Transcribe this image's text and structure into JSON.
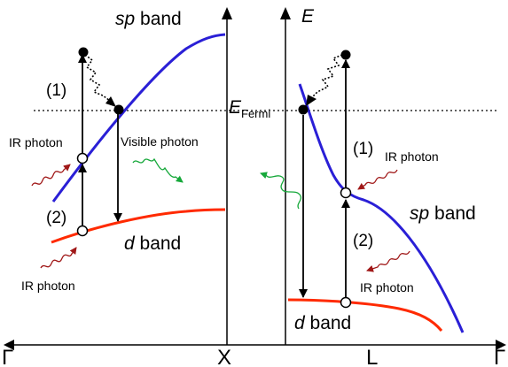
{
  "left_panel": {
    "sp_band": {
      "italic": "sp",
      "rest": " band"
    },
    "d_band": {
      "italic": "d",
      "rest": " band"
    },
    "step1": "(1)",
    "step2": "(2)",
    "ir_photon_upper": "IR photon",
    "ir_photon_lower": "IR photon",
    "visible_photon": "Visible photon"
  },
  "right_panel": {
    "energy_axis": "E",
    "fermi": {
      "main": "E",
      "sub": "Fermi"
    },
    "sp_band": {
      "italic": "sp",
      "rest": " band"
    },
    "d_band": {
      "italic": "d",
      "rest": " band"
    },
    "step1": "(1)",
    "step2": "(2)",
    "ir_photon_upper": "IR photon",
    "ir_photon_lower": "IR photon"
  },
  "k_points": {
    "left_gamma": "Γ",
    "x_point": "X",
    "l_point": "L",
    "right_gamma": "Γ"
  },
  "colors": {
    "sp_band": "#2a1fd6",
    "d_band": "#ff2a00",
    "ir_photon": "#a01818",
    "visible_photon": "#16a83a",
    "axes": "#000000"
  }
}
